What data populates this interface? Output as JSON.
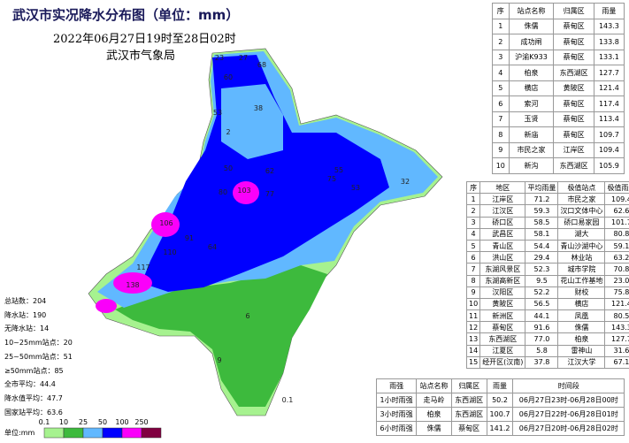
{
  "header": {
    "title": "武汉市实况降水分布图（单位：mm）",
    "subtitle": "2022年06月27日19时至28日02时",
    "organization": "武汉市气象局"
  },
  "stats": [
    "总站数：204",
    "降水站：190",
    "无降水站：14",
    "10~25mm站点：20",
    "25~50mm站点：51",
    "≥50mm站点：85",
    "全市平均：44.4",
    "降水值平均：47.7",
    "国家站平均：63.6"
  ],
  "top_stations": {
    "headers": [
      "序",
      "站点名称",
      "归属区",
      "雨量"
    ],
    "rows": [
      [
        "1",
        "侏儒",
        "蔡甸区",
        "143.3"
      ],
      [
        "2",
        "成功闸",
        "蔡甸区",
        "133.8"
      ],
      [
        "3",
        "沪渝K933",
        "蔡甸区",
        "133.1"
      ],
      [
        "4",
        "柏泉",
        "东西湖区",
        "127.7"
      ],
      [
        "5",
        "横店",
        "黄陂区",
        "121.4"
      ],
      [
        "6",
        "索河",
        "蔡甸区",
        "117.4"
      ],
      [
        "7",
        "玉贤",
        "蔡甸区",
        "113.4"
      ],
      [
        "8",
        "新庙",
        "蔡甸区",
        "109.7"
      ],
      [
        "9",
        "市民之家",
        "江岸区",
        "109.4"
      ],
      [
        "10",
        "新沟",
        "东西湖区",
        "105.9"
      ]
    ]
  },
  "districts": {
    "headers": [
      "序",
      "地区",
      "平均雨量",
      "极值站点",
      "极值雨量"
    ],
    "rows": [
      [
        "1",
        "江岸区",
        "71.2",
        "市民之家",
        "109.4"
      ],
      [
        "2",
        "江汉区",
        "59.3",
        "汉口文体中心",
        "62.6"
      ],
      [
        "3",
        "硚口区",
        "58.5",
        "硚口易家园",
        "101.7"
      ],
      [
        "4",
        "武昌区",
        "58.1",
        "湖大",
        "80.8"
      ],
      [
        "5",
        "青山区",
        "54.4",
        "青山沙湖中心",
        "59.1"
      ],
      [
        "6",
        "洪山区",
        "29.4",
        "林业站",
        "63.2"
      ],
      [
        "7",
        "东湖风景区",
        "52.3",
        "城市学院",
        "70.8"
      ],
      [
        "8",
        "东湖高新区",
        "9.5",
        "花山工作基地",
        "23.0"
      ],
      [
        "9",
        "汉阳区",
        "52.2",
        "财校",
        "75.8"
      ],
      [
        "10",
        "黄陂区",
        "56.5",
        "横店",
        "121.4"
      ],
      [
        "11",
        "新洲区",
        "44.1",
        "凤凰",
        "80.5"
      ],
      [
        "12",
        "蔡甸区",
        "91.6",
        "侏儒",
        "143.3"
      ],
      [
        "13",
        "东西湖区",
        "77.0",
        "柏泉",
        "127.7"
      ],
      [
        "14",
        "江夏区",
        "5.8",
        "雷神山",
        "31.6"
      ],
      [
        "15",
        "经开区(汉南)",
        "37.8",
        "江汉大学",
        "67.1"
      ]
    ]
  },
  "intensity": {
    "headers": [
      "雨强",
      "站点名称",
      "归属区",
      "雨量",
      "时间段"
    ],
    "rows": [
      [
        "1小时雨强",
        "走马岭",
        "东西湖区",
        "50.2",
        "06月27日23时-06月28日00时"
      ],
      [
        "3小时雨强",
        "柏泉",
        "东西湖区",
        "100.7",
        "06月27日22时-06月28日01时"
      ],
      [
        "6小时雨强",
        "侏儒",
        "蔡甸区",
        "141.2",
        "06月27日20时-06月28日02时"
      ]
    ]
  },
  "map_labels": [
    "23",
    "27",
    "68",
    "60",
    "53",
    "38",
    "55",
    "75",
    "53",
    "32",
    "50",
    "62",
    "80",
    "103",
    "77",
    "106",
    "91",
    "110",
    "117",
    "138",
    "64",
    "2",
    "6",
    "9",
    "0.1"
  ],
  "legend": {
    "unit": "单位:mm",
    "ticks": [
      "0.1",
      "10",
      "25",
      "50",
      "100",
      "250"
    ],
    "colors": [
      "#a6f28f",
      "#3dba3d",
      "#61b8ff",
      "#0000ff",
      "#fa00fa",
      "#800040"
    ]
  }
}
